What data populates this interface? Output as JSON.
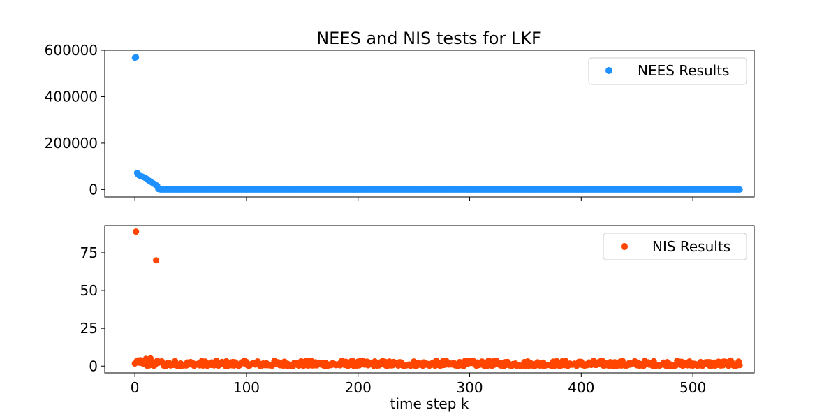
{
  "title": "NEES and NIS tests for LKF",
  "xlabel": "time step k",
  "colors": {
    "nees": "#1e90ff",
    "nis": "#ff4500",
    "axes": "#000000",
    "legend_border": "#cccccc"
  },
  "chart_data": [
    {
      "type": "scatter",
      "title": "NEES and NIS tests for LKF",
      "xlabel": "",
      "ylabel": "",
      "xlim": [
        -27,
        555
      ],
      "ylim": [
        -32000,
        600000
      ],
      "xticks": [
        0,
        100,
        200,
        300,
        400,
        500
      ],
      "xtick_labels_visible": false,
      "yticks": [
        0,
        200000,
        400000,
        600000
      ],
      "ytick_labels": [
        "0",
        "200000",
        "400000",
        "600000"
      ],
      "grid": false,
      "legend": {
        "position": "top-right",
        "entries": [
          "NEES Results"
        ]
      },
      "series": [
        {
          "name": "NEES Results",
          "color": "#1e90ff",
          "k_range": [
            0,
            542
          ],
          "points": [
            [
              0,
              568000
            ],
            [
              1,
              570000
            ],
            [
              2,
              72000
            ],
            [
              3,
              64000
            ],
            [
              4,
              60000
            ],
            [
              5,
              58000
            ],
            [
              6,
              57000
            ],
            [
              7,
              55000
            ],
            [
              8,
              53000
            ],
            [
              9,
              51000
            ],
            [
              10,
              48000
            ],
            [
              11,
              44000
            ],
            [
              12,
              40000
            ],
            [
              13,
              37000
            ],
            [
              14,
              34000
            ],
            [
              15,
              31000
            ],
            [
              16,
              28000
            ],
            [
              17,
              25000
            ],
            [
              18,
              22000
            ],
            [
              19,
              19000
            ],
            [
              20,
              16000
            ],
            [
              21,
              2000
            ],
            [
              22,
              1500
            ]
          ],
          "tail": {
            "from": 23,
            "to": 542,
            "value": 0
          }
        }
      ]
    },
    {
      "type": "scatter",
      "xlabel": "time step k",
      "ylabel": "",
      "xlim": [
        -27,
        555
      ],
      "ylim": [
        -4.5,
        93
      ],
      "xticks": [
        0,
        100,
        200,
        300,
        400,
        500
      ],
      "xtick_labels": [
        "0",
        "100",
        "200",
        "300",
        "400",
        "500"
      ],
      "yticks": [
        0,
        25,
        50,
        75
      ],
      "ytick_labels": [
        "0",
        "25",
        "50",
        "75"
      ],
      "grid": false,
      "legend": {
        "position": "top-right",
        "entries": [
          "NIS Results"
        ]
      },
      "series": [
        {
          "name": "NIS Results",
          "color": "#ff4500",
          "k_range": [
            0,
            542
          ],
          "outliers": [
            [
              1,
              89
            ],
            [
              19,
              70
            ]
          ],
          "baseline": {
            "mean": 1.2,
            "spread": 3.5,
            "value_range": [
              0,
              4
            ]
          }
        }
      ]
    }
  ]
}
